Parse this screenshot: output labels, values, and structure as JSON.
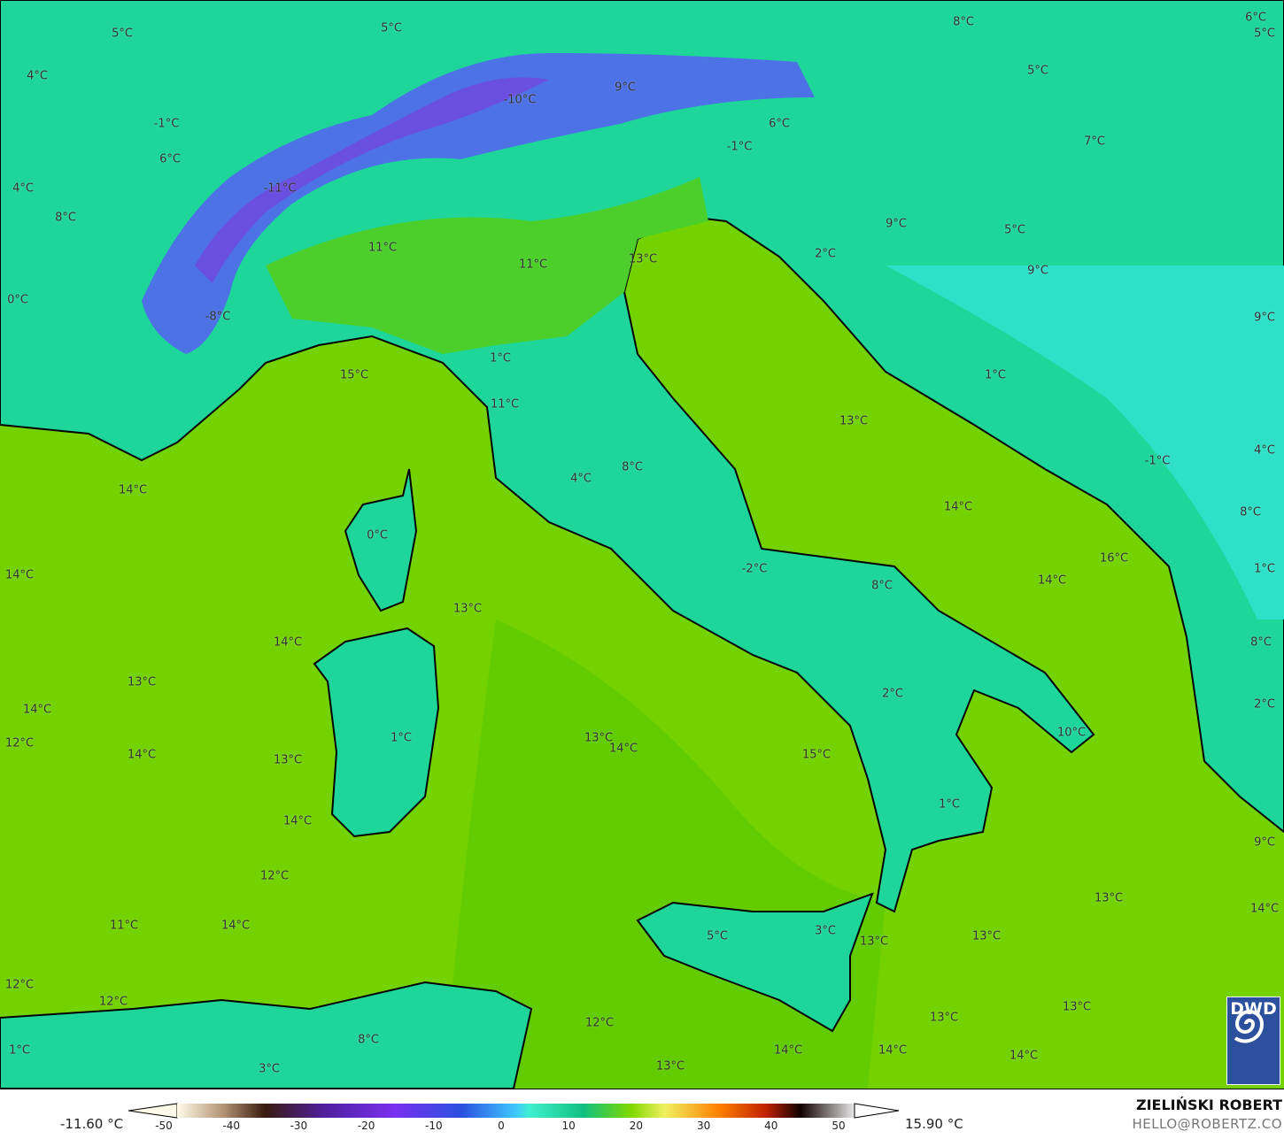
{
  "map": {
    "colors": {
      "sea": "#74d200",
      "lowland": "#4ccf2a",
      "hills": "#1ed69a",
      "mountain": "#2fe0c8",
      "alps": "#4d72e6",
      "alps_high": "#6a4fe0",
      "coast": "#000000",
      "borders": "#777777"
    },
    "labels": [
      "5°C",
      "5°C",
      "8°C",
      "6°C",
      "5°C",
      "4°C",
      "5°C",
      "-10°C",
      "9°C",
      "6°C",
      "-1°C",
      "7°C",
      "6°C",
      "-1°C",
      "4°C",
      "-11°C",
      "8°C",
      "9°C",
      "5°C",
      "11°C",
      "2°C",
      "11°C",
      "13°C",
      "9°C",
      "0°C",
      "-8°C",
      "9°C",
      "1°C",
      "15°C",
      "1°C",
      "11°C",
      "13°C",
      "-1°C",
      "4°C",
      "14°C",
      "8°C",
      "4°C",
      "14°C",
      "8°C",
      "0°C",
      "16°C",
      "-2°C",
      "14°C",
      "14°C",
      "1°C",
      "8°C",
      "13°C",
      "14°C",
      "8°C",
      "13°C",
      "2°C",
      "14°C",
      "2°C",
      "1°C",
      "10°C",
      "12°C",
      "13°C",
      "14°C",
      "14°C",
      "13°C",
      "15°C",
      "1°C",
      "14°C",
      "9°C",
      "12°C",
      "13°C",
      "11°C",
      "14°C",
      "5°C",
      "3°C",
      "13°C",
      "13°C",
      "14°C",
      "12°C",
      "12°C",
      "13°C",
      "12°C",
      "13°C",
      "8°C",
      "1°C",
      "14°C",
      "14°C",
      "14°C",
      "3°C",
      "13°C"
    ]
  },
  "legend": {
    "min": "-11.60 °C",
    "max": "15.90 °C",
    "ticks": [
      "-50",
      "-40",
      "-30",
      "-20",
      "-10",
      "0",
      "10",
      "20",
      "30",
      "40",
      "50"
    ],
    "author": "ZIELIŃSKI ROBERT",
    "email": "HELLO@ROBERTZ.CO",
    "logo": "DWD"
  }
}
